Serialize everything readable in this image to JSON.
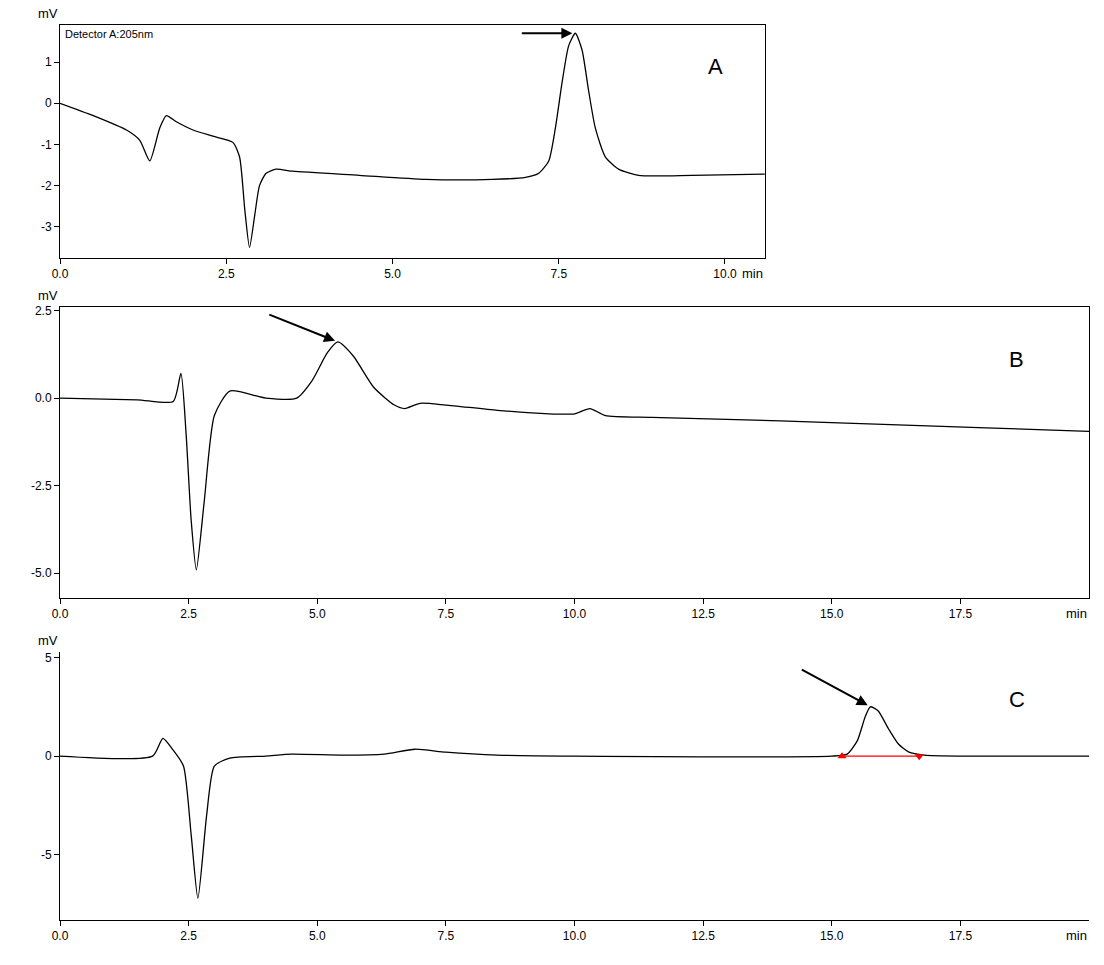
{
  "chart_data": [
    {
      "type": "line",
      "panel": "A",
      "annotations": [
        "Detector A:205nm"
      ],
      "xlabel": "min",
      "ylabel": "mV",
      "color": "#000000",
      "grid": false,
      "x": [
        0,
        0.5,
        1.0,
        1.2,
        1.35,
        1.5,
        1.6,
        1.75,
        2.0,
        2.3,
        2.6,
        2.7,
        2.78,
        2.85,
        2.93,
        3.0,
        3.1,
        3.25,
        3.5,
        4.5,
        5.5,
        6.5,
        7.0,
        7.2,
        7.35,
        7.45,
        7.55,
        7.65,
        7.75,
        7.85,
        7.95,
        8.05,
        8.2,
        8.4,
        8.7,
        9.5,
        10.6
      ],
      "values": [
        0,
        -0.3,
        -0.65,
        -0.9,
        -1.4,
        -0.6,
        -0.3,
        -0.45,
        -0.65,
        -0.8,
        -0.95,
        -1.3,
        -2.6,
        -3.5,
        -2.7,
        -2.0,
        -1.7,
        -1.6,
        -1.65,
        -1.75,
        -1.85,
        -1.85,
        -1.8,
        -1.7,
        -1.4,
        -0.6,
        0.5,
        1.4,
        1.7,
        1.3,
        0.3,
        -0.6,
        -1.3,
        -1.6,
        -1.75,
        -1.75,
        -1.72
      ],
      "xlim": [
        0,
        10.6
      ],
      "xticks": [
        {
          "value": 0,
          "label": "0.0"
        },
        {
          "value": 2.5,
          "label": "2.5"
        },
        {
          "value": 5,
          "label": "5.0"
        },
        {
          "value": 7.5,
          "label": "7.5"
        },
        {
          "value": 10,
          "label": "10.0"
        }
      ],
      "ylim": [
        -3.75,
        1.9
      ],
      "yticks": [
        -3,
        -2,
        -1,
        0,
        1
      ]
    },
    {
      "type": "line",
      "panel": "B",
      "xlabel": "min",
      "ylabel": "mV",
      "color": "#000000",
      "grid": false,
      "x": [
        0,
        1.5,
        2.2,
        2.35,
        2.45,
        2.55,
        2.65,
        2.8,
        3.0,
        3.3,
        4.0,
        4.6,
        4.9,
        5.2,
        5.4,
        5.7,
        6.1,
        6.5,
        6.7,
        7.0,
        7.5,
        8.5,
        9.5,
        10.0,
        10.3,
        10.6,
        11.5,
        14,
        16,
        18,
        20
      ],
      "values": [
        0,
        -0.05,
        -0.1,
        0.7,
        -1.0,
        -3.5,
        -4.9,
        -3.0,
        -0.5,
        0.2,
        0.0,
        0.0,
        0.5,
        1.3,
        1.6,
        1.2,
        0.3,
        -0.2,
        -0.3,
        -0.15,
        -0.2,
        -0.35,
        -0.45,
        -0.45,
        -0.3,
        -0.5,
        -0.55,
        -0.65,
        -0.75,
        -0.85,
        -0.95
      ],
      "xlim": [
        0,
        20
      ],
      "xticks": [
        {
          "value": 0,
          "label": "0.0"
        },
        {
          "value": 2.5,
          "label": "2.5"
        },
        {
          "value": 5,
          "label": "5.0"
        },
        {
          "value": 7.5,
          "label": "7.5"
        },
        {
          "value": 10,
          "label": "10.0"
        },
        {
          "value": 12.5,
          "label": "12.5"
        },
        {
          "value": 15,
          "label": "15.0"
        },
        {
          "value": 17.5,
          "label": "17.5"
        }
      ],
      "ylim": [
        -5.7,
        2.6
      ],
      "yticks": [
        {
          "value": -5,
          "label": "-5.0"
        },
        {
          "value": -2.5,
          "label": "-2.5"
        },
        {
          "value": 0,
          "label": "0.0"
        },
        {
          "value": 2.5,
          "label": "2.5"
        }
      ]
    },
    {
      "type": "line",
      "panel": "C",
      "xlabel": "min",
      "ylabel": "mV",
      "color": "#000000",
      "grid": false,
      "x": [
        0,
        1.8,
        2.0,
        2.2,
        2.4,
        2.55,
        2.68,
        2.85,
        3.0,
        3.3,
        4.0,
        4.5,
        5.5,
        6.3,
        6.9,
        7.5,
        8.5,
        10,
        15.0,
        15.3,
        15.5,
        15.65,
        15.75,
        15.9,
        16.1,
        16.3,
        16.5,
        16.8,
        17.5,
        20
      ],
      "values": [
        0,
        0,
        0.9,
        0.3,
        -0.5,
        -4.0,
        -7.2,
        -3.0,
        -0.5,
        -0.1,
        0,
        0.1,
        0.05,
        0.1,
        0.35,
        0.2,
        0.05,
        0,
        0,
        0.1,
        0.8,
        2.0,
        2.5,
        2.3,
        1.4,
        0.6,
        0.2,
        0.05,
        0,
        0
      ],
      "baseline": {
        "x": [
          15.2,
          16.7
        ],
        "y": [
          0,
          0
        ],
        "color": "#ff0000"
      },
      "xlim": [
        0,
        20
      ],
      "xticks": [
        {
          "value": 0,
          "label": "0.0"
        },
        {
          "value": 2.5,
          "label": "2.5"
        },
        {
          "value": 5,
          "label": "5.0"
        },
        {
          "value": 7.5,
          "label": "7.5"
        },
        {
          "value": 10,
          "label": "10.0"
        },
        {
          "value": 12.5,
          "label": "12.5"
        },
        {
          "value": 15,
          "label": "15.0"
        },
        {
          "value": 17.5,
          "label": "17.5"
        }
      ],
      "ylim": [
        -8.3,
        5.3
      ],
      "yticks": [
        -5,
        0,
        5
      ]
    }
  ]
}
